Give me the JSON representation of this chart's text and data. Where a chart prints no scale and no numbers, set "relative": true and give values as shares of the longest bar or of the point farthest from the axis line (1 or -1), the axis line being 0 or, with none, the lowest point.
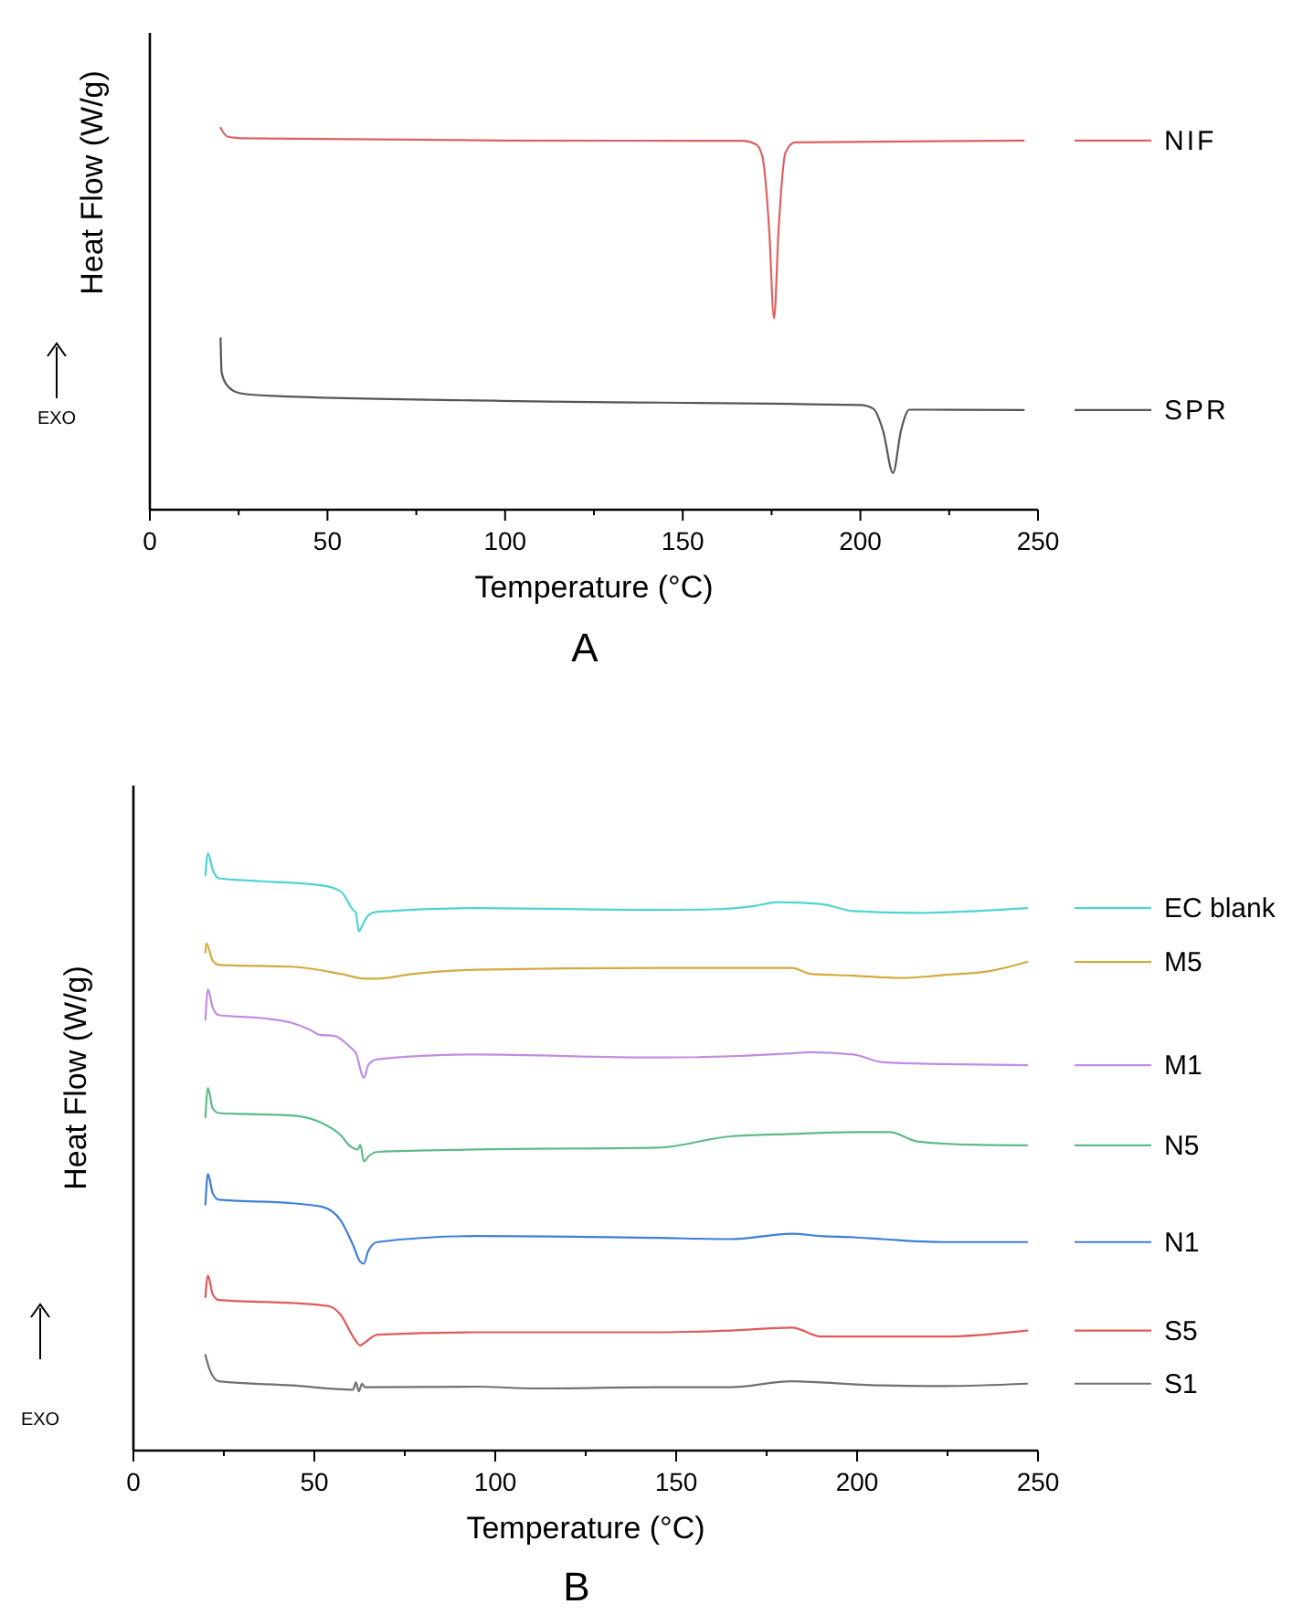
{
  "chart_data": [
    {
      "type": "line",
      "relative": true,
      "xlabel": "Temperature (°C)",
      "ylabel": "Heat Flow (W/g)",
      "annotations": [
        "EXO",
        "A"
      ],
      "xlim": [
        0,
        250
      ],
      "xticks": [
        0,
        {
          "value": 25,
          "label": null
        },
        50,
        {
          "value": 75,
          "label": null
        },
        100,
        {
          "value": 125,
          "label": null
        },
        150,
        {
          "value": 175,
          "label": null
        },
        200,
        {
          "value": 225,
          "label": null
        },
        250
      ],
      "legend": "right",
      "grid": false,
      "series": [
        {
          "name": "NIF",
          "color": "#e06060",
          "x": [
            19.9,
            21.7,
            25.4,
            98.9,
            166.9,
            170.6,
            172.4,
            174.3,
            175.7,
            177.0,
            178.9,
            181.6,
            246
          ],
          "values": [
            1.0,
            0.978,
            0.973,
            0.967,
            0.966,
            0.957,
            0.926,
            0.738,
            0.501,
            0.738,
            0.935,
            0.962,
            0.967
          ]
        },
        {
          "name": "SPR",
          "color": "#555555",
          "x": [
            19.9,
            20.2,
            21.7,
            25.4,
            34.6,
            98.9,
            200,
            203.7,
            206.4,
            209.2,
            211.4,
            213.8,
            246
          ],
          "values": [
            0.449,
            0.36,
            0.326,
            0.305,
            0.298,
            0.285,
            0.274,
            0.264,
            0.206,
            0.096,
            0.206,
            0.262,
            0.261
          ]
        }
      ]
    },
    {
      "type": "line",
      "relative": true,
      "xlabel": "Temperature (°C)",
      "ylabel": "Heat Flow (W/g)",
      "annotations": [
        "EXO",
        "B"
      ],
      "xlim": [
        0,
        250
      ],
      "xticks": [
        0,
        {
          "value": 25,
          "label": null
        },
        50,
        {
          "value": 75,
          "label": null
        },
        100,
        {
          "value": 125,
          "label": null
        },
        150,
        {
          "value": 175,
          "label": null
        },
        200,
        {
          "value": 225,
          "label": null
        },
        250
      ],
      "legend": "right",
      "grid": false,
      "series": [
        {
          "name": "EC blank",
          "color": "#4fd3d3",
          "x": [
            19.9,
            20.6,
            22,
            23.6,
            35.4,
            52.2,
            57.3,
            60.7,
            61.5,
            62.3,
            63.2,
            64.9,
            67.4,
            94.4,
            144.9,
            160,
            172,
            178,
            190,
            199,
            216,
            247
          ],
          "values": [
            0.963,
            1.0,
            0.971,
            0.958,
            0.953,
            0.946,
            0.936,
            0.905,
            0.9,
            0.869,
            0.878,
            0.896,
            0.902,
            0.908,
            0.905,
            0.906,
            0.912,
            0.918,
            0.915,
            0.903,
            0.9,
            0.908
          ]
        },
        {
          "name": "M5",
          "color": "#d4aa40",
          "x": [
            19.9,
            20.2,
            21.9,
            23.6,
            43.8,
            57.3,
            64,
            67.4,
            77.5,
            94.4,
            144.9,
            182,
            187,
            199,
            212,
            224,
            237,
            247
          ],
          "values": [
            0.834,
            0.849,
            0.82,
            0.813,
            0.81,
            0.798,
            0.79,
            0.79,
            0.798,
            0.805,
            0.808,
            0.808,
            0.798,
            0.795,
            0.791,
            0.796,
            0.803,
            0.818
          ]
        },
        {
          "name": "M1",
          "color": "#c08ee0",
          "x": [
            19.9,
            20.6,
            21.9,
            23.6,
            35.4,
            43.8,
            48.9,
            51.4,
            55.6,
            59.8,
            61.5,
            63.7,
            64.9,
            67.4,
            94.4,
            144.9,
            182,
            187,
            199,
            207,
            224,
            247
          ],
          "values": [
            0.721,
            0.772,
            0.742,
            0.729,
            0.724,
            0.716,
            0.704,
            0.696,
            0.694,
            0.676,
            0.665,
            0.624,
            0.645,
            0.655,
            0.663,
            0.658,
            0.665,
            0.667,
            0.663,
            0.65,
            0.647,
            0.645
          ]
        },
        {
          "name": "N5",
          "color": "#5fba8a",
          "x": [
            19.9,
            20.6,
            21.9,
            23.6,
            43.8,
            52.2,
            57.3,
            59.8,
            62,
            62.7,
            63.7,
            64.9,
            67.4,
            94.4,
            144.9,
            165,
            182,
            199,
            209,
            217,
            232,
            247
          ],
          "values": [
            0.558,
            0.607,
            0.573,
            0.565,
            0.561,
            0.548,
            0.528,
            0.51,
            0.504,
            0.512,
            0.484,
            0.492,
            0.5,
            0.504,
            0.507,
            0.526,
            0.53,
            0.533,
            0.533,
            0.517,
            0.512,
            0.511
          ]
        },
        {
          "name": "N1",
          "color": "#3f7fd6",
          "x": [
            19.9,
            20.6,
            21.9,
            23.6,
            43.8,
            52.2,
            57.3,
            60.7,
            62.7,
            63.7,
            64.9,
            67.4,
            94.4,
            144.9,
            165,
            182,
            190,
            199,
            207,
            224,
            247
          ],
          "values": [
            0.412,
            0.463,
            0.431,
            0.42,
            0.414,
            0.408,
            0.385,
            0.344,
            0.316,
            0.313,
            0.334,
            0.349,
            0.359,
            0.356,
            0.354,
            0.363,
            0.359,
            0.357,
            0.354,
            0.349,
            0.349
          ]
        },
        {
          "name": "S5",
          "color": "#e05a5a",
          "x": [
            19.9,
            20.6,
            21.9,
            23.6,
            43.8,
            53.9,
            57.3,
            60.7,
            62.7,
            64,
            67.4,
            94.4,
            144.9,
            165,
            182,
            190,
            207,
            224,
            247
          ],
          "values": [
            0.257,
            0.293,
            0.262,
            0.252,
            0.247,
            0.242,
            0.227,
            0.191,
            0.176,
            0.181,
            0.194,
            0.198,
            0.198,
            0.201,
            0.206,
            0.191,
            0.191,
            0.191,
            0.201
          ]
        },
        {
          "name": "S1",
          "color": "#707070",
          "x": [
            19.9,
            21.1,
            23.6,
            43.8,
            60.7,
            61.5,
            62.3,
            63.2,
            64,
            94.4,
            111.2,
            144.9,
            165,
            182,
            190,
            207,
            224,
            247
          ],
          "values": [
            0.16,
            0.135,
            0.116,
            0.109,
            0.102,
            0.114,
            0.099,
            0.112,
            0.106,
            0.107,
            0.104,
            0.106,
            0.106,
            0.116,
            0.114,
            0.109,
            0.108,
            0.112
          ]
        }
      ]
    }
  ]
}
